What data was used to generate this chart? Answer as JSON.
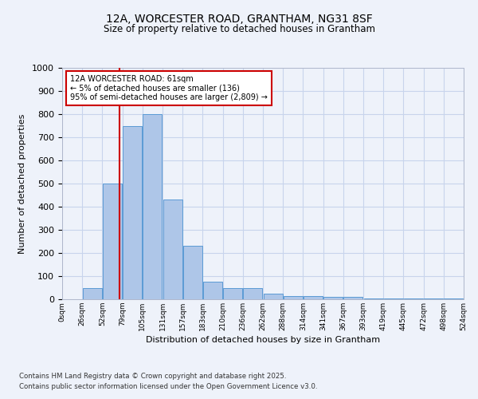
{
  "title_line1": "12A, WORCESTER ROAD, GRANTHAM, NG31 8SF",
  "title_line2": "Size of property relative to detached houses in Grantham",
  "xlabel": "Distribution of detached houses by size in Grantham",
  "ylabel": "Number of detached properties",
  "bin_labels": [
    "0sqm",
    "26sqm",
    "52sqm",
    "79sqm",
    "105sqm",
    "131sqm",
    "157sqm",
    "183sqm",
    "210sqm",
    "236sqm",
    "262sqm",
    "288sqm",
    "314sqm",
    "341sqm",
    "367sqm",
    "393sqm",
    "419sqm",
    "445sqm",
    "472sqm",
    "498sqm",
    "524sqm"
  ],
  "bar_values": [
    0,
    50,
    500,
    750,
    800,
    430,
    230,
    75,
    50,
    50,
    25,
    15,
    15,
    10,
    10,
    5,
    5,
    5,
    5,
    5
  ],
  "bar_color": "#aec6e8",
  "bar_edge_color": "#5b9bd5",
  "red_line_x": 2.35,
  "red_line_label": "12A WORCESTER ROAD: 61sqm",
  "annotation_line2": "← 5% of detached houses are smaller (136)",
  "annotation_line3": "95% of semi-detached houses are larger (2,809) →",
  "annotation_box_color": "#ffffff",
  "annotation_box_edge_color": "#cc0000",
  "annotation_text_color": "#000000",
  "red_line_color": "#cc0000",
  "ylim": [
    0,
    1000
  ],
  "yticks": [
    0,
    100,
    200,
    300,
    400,
    500,
    600,
    700,
    800,
    900,
    1000
  ],
  "footnote_line1": "Contains HM Land Registry data © Crown copyright and database right 2025.",
  "footnote_line2": "Contains public sector information licensed under the Open Government Licence v3.0.",
  "bg_color": "#eef2fa",
  "grid_color": "#c8d4ec"
}
